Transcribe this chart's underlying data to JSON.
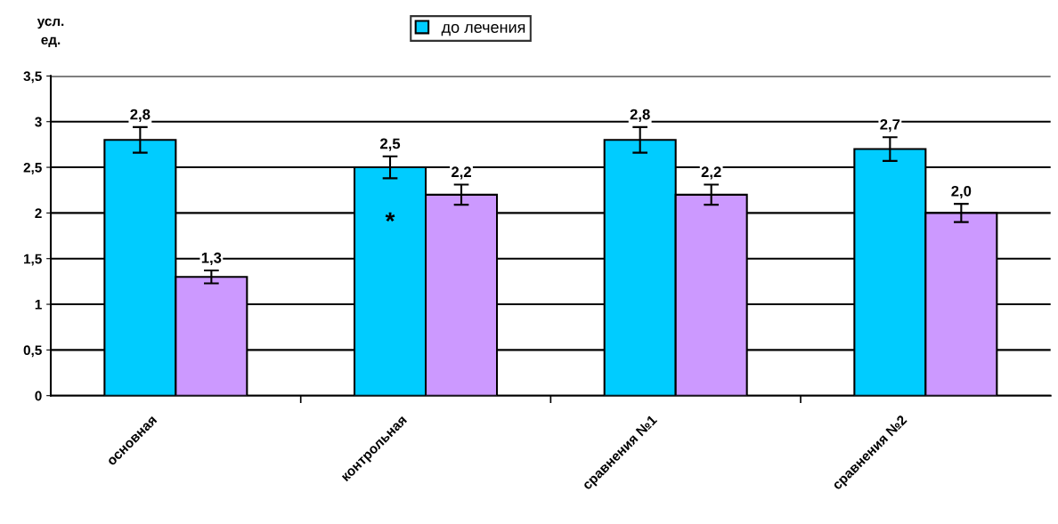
{
  "chart_data": {
    "type": "bar",
    "ylabel": "усл.\nед.",
    "categories": [
      "основная",
      "контрольная",
      "сравнения №1",
      "сравнения №2"
    ],
    "series": [
      {
        "name": "до лечения",
        "color": "#00ccff",
        "values": [
          2.8,
          2.5,
          2.8,
          2.7
        ],
        "errors": [
          0.14,
          0.12,
          0.14,
          0.13
        ],
        "value_labels": [
          "2,8",
          "2,5",
          "2,8",
          "2,7"
        ]
      },
      {
        "color": "#cc99ff",
        "values": [
          1.3,
          2.2,
          2.2,
          2.0
        ],
        "errors": [
          0.07,
          0.11,
          0.11,
          0.1
        ],
        "value_labels": [
          "1,3",
          "2,2",
          "2,2",
          "2,0"
        ]
      }
    ],
    "ylim": [
      0,
      3.5
    ],
    "yticks": [
      0,
      {
        "value": 0.5,
        "label": "0,5"
      },
      1,
      {
        "value": 1.5,
        "label": "1,5"
      },
      2,
      {
        "value": 2.5,
        "label": "2,5"
      },
      3,
      {
        "value": 3.5,
        "label": "3,5"
      }
    ],
    "annotations": [
      "*"
    ],
    "grid": "y",
    "legend": "top"
  }
}
